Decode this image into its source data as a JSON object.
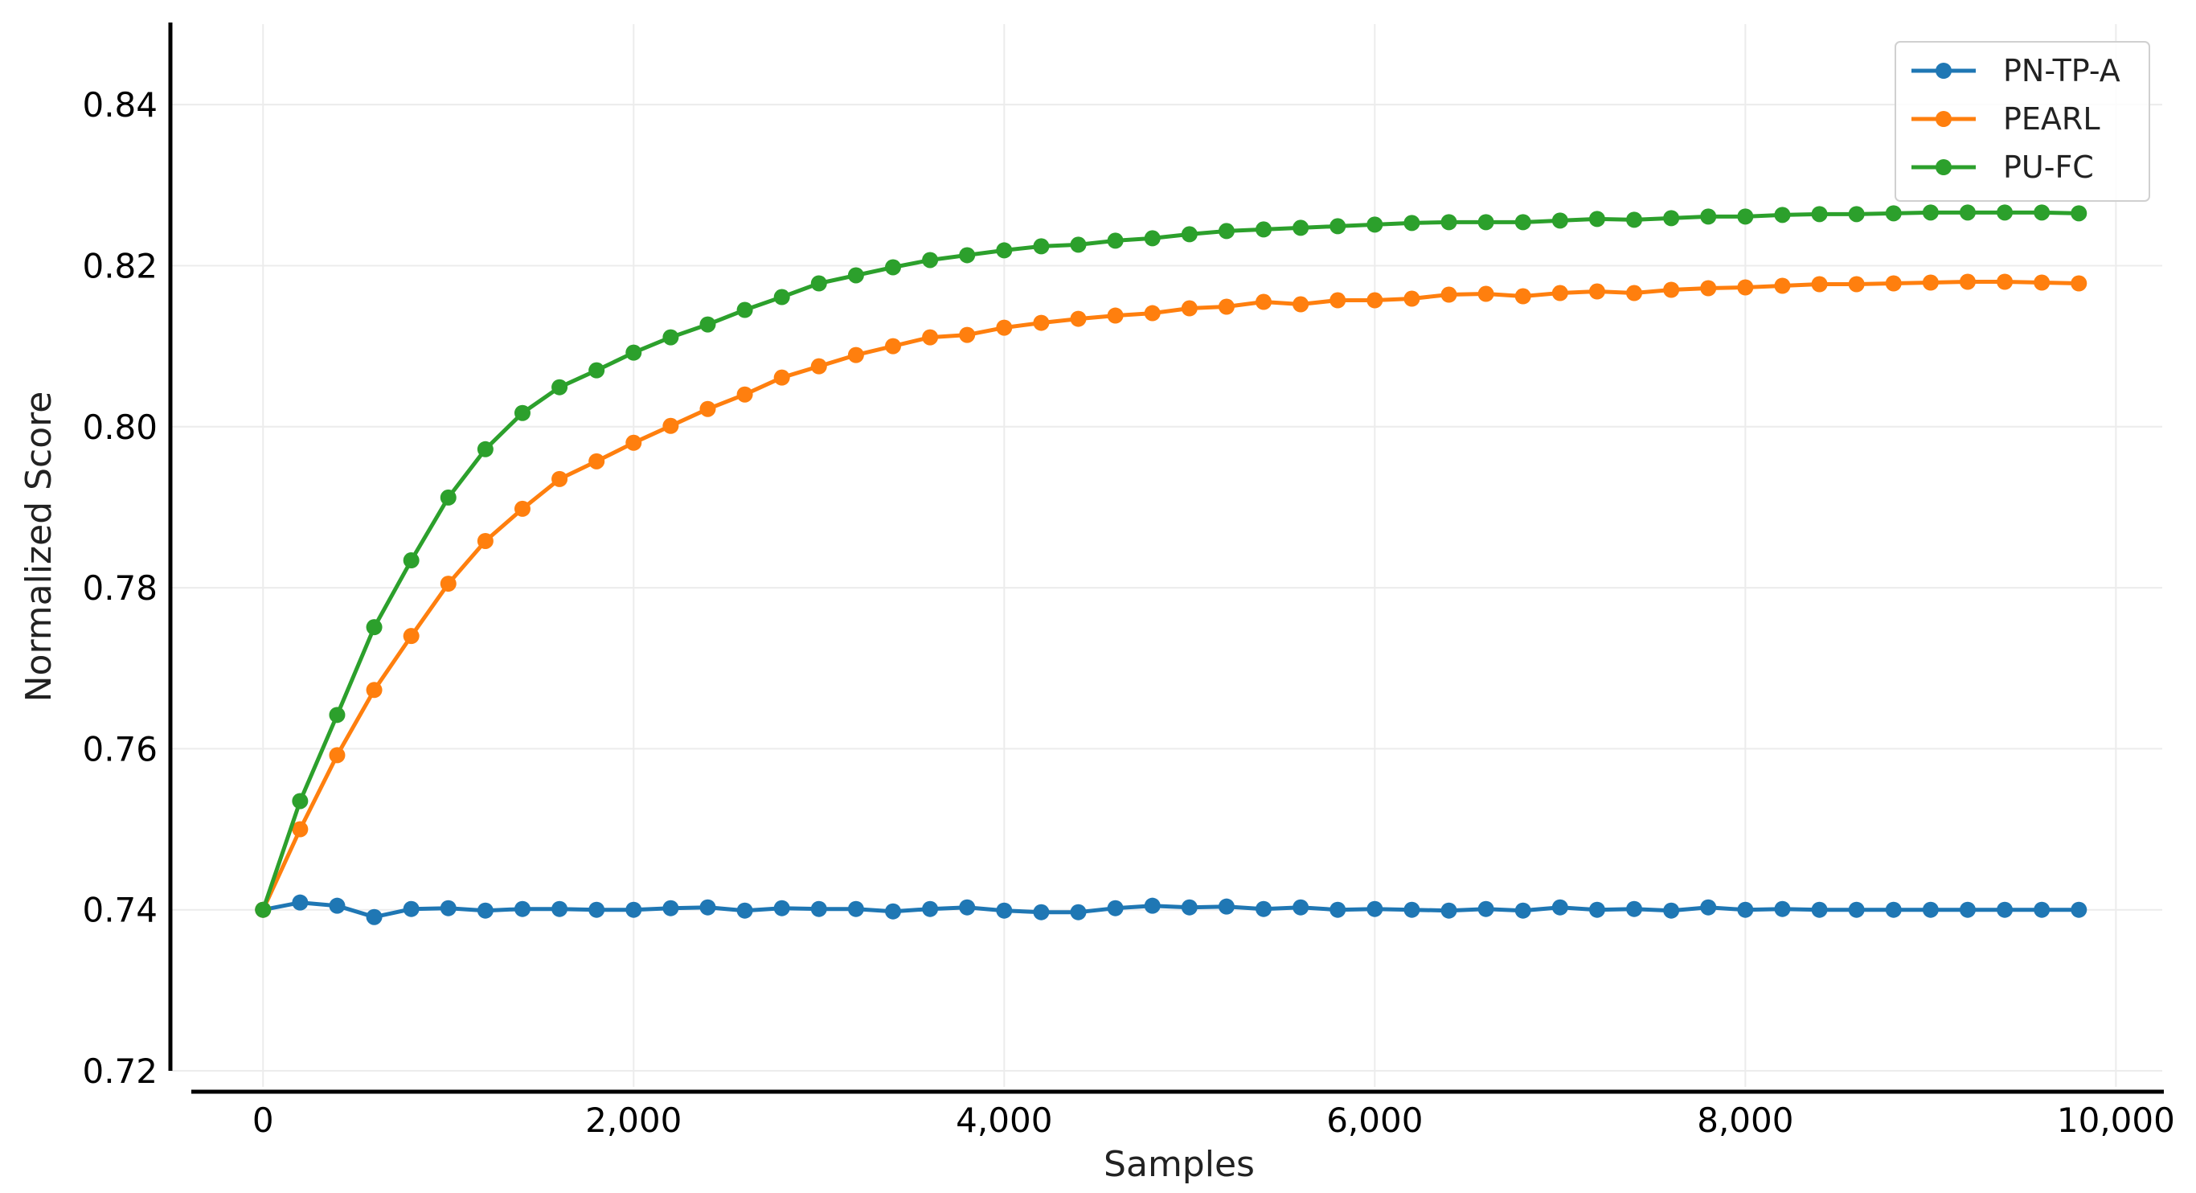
{
  "chart_data": {
    "type": "line",
    "title": "",
    "xlabel": "Samples",
    "ylabel": "Normalized Score",
    "xlim": [
      -500,
      10250
    ],
    "ylim": [
      0.72,
      0.85
    ],
    "x_ticks": [
      0,
      2000,
      4000,
      6000,
      8000,
      10000
    ],
    "x_tick_labels": [
      "0",
      "2,000",
      "4,000",
      "6,000",
      "8,000",
      "10,000"
    ],
    "y_ticks": [
      0.72,
      0.74,
      0.76,
      0.78,
      0.8,
      0.82,
      0.84
    ],
    "y_tick_labels": [
      "0.72",
      "0.74",
      "0.76",
      "0.78",
      "0.80",
      "0.82",
      "0.84"
    ],
    "grid": true,
    "legend_position": "top-right",
    "x": [
      0,
      200,
      400,
      600,
      800,
      1000,
      1200,
      1400,
      1600,
      1800,
      2000,
      2200,
      2400,
      2600,
      2800,
      3000,
      3200,
      3400,
      3600,
      3800,
      4000,
      4200,
      4400,
      4600,
      4800,
      5000,
      5200,
      5400,
      5600,
      5800,
      6000,
      6200,
      6400,
      6600,
      6800,
      7000,
      7200,
      7400,
      7600,
      7800,
      8000,
      8200,
      8400,
      8600,
      8800,
      9000,
      9200,
      9400,
      9600,
      9800
    ],
    "series": [
      {
        "name": "PN-TP-A",
        "color": "#1f77b4",
        "values": [
          0.74,
          0.7409,
          0.7405,
          0.7391,
          0.7401,
          0.7402,
          0.7399,
          0.7401,
          0.7401,
          0.74,
          0.74,
          0.7402,
          0.7403,
          0.7399,
          0.7402,
          0.7401,
          0.7401,
          0.7398,
          0.7401,
          0.7403,
          0.7399,
          0.7397,
          0.7397,
          0.7402,
          0.7405,
          0.7403,
          0.7404,
          0.7401,
          0.7403,
          0.74,
          0.7401,
          0.74,
          0.7399,
          0.7401,
          0.7399,
          0.7403,
          0.74,
          0.7401,
          0.7399,
          0.7403,
          0.74,
          0.7401,
          0.74,
          0.74,
          0.74,
          0.74,
          0.74,
          0.74,
          0.74,
          0.74
        ]
      },
      {
        "name": "PEARL",
        "color": "#ff7f0e",
        "values": [
          0.74,
          0.75,
          0.7592,
          0.7673,
          0.774,
          0.7805,
          0.7858,
          0.7898,
          0.7935,
          0.7957,
          0.798,
          0.8001,
          0.8022,
          0.804,
          0.8061,
          0.8075,
          0.8089,
          0.81,
          0.8111,
          0.8114,
          0.8123,
          0.8129,
          0.8134,
          0.8138,
          0.8141,
          0.8147,
          0.8149,
          0.8155,
          0.8152,
          0.8157,
          0.8157,
          0.8159,
          0.8164,
          0.8165,
          0.8162,
          0.8166,
          0.8168,
          0.8166,
          0.817,
          0.8172,
          0.8173,
          0.8175,
          0.8177,
          0.8177,
          0.8178,
          0.8179,
          0.818,
          0.818,
          0.8179,
          0.8178
        ]
      },
      {
        "name": "PU-FC",
        "color": "#2ca02c",
        "values": [
          0.74,
          0.7535,
          0.7642,
          0.7751,
          0.7834,
          0.7912,
          0.7972,
          0.8017,
          0.8049,
          0.807,
          0.8092,
          0.8111,
          0.8127,
          0.8145,
          0.8161,
          0.8178,
          0.8188,
          0.8198,
          0.8207,
          0.8213,
          0.8219,
          0.8224,
          0.8226,
          0.8231,
          0.8234,
          0.8239,
          0.8243,
          0.8245,
          0.8247,
          0.8249,
          0.8251,
          0.8253,
          0.8254,
          0.8254,
          0.8254,
          0.8256,
          0.8258,
          0.8257,
          0.8259,
          0.8261,
          0.8261,
          0.8263,
          0.8264,
          0.8264,
          0.8265,
          0.8266,
          0.8266,
          0.8266,
          0.8266,
          0.8265
        ]
      }
    ]
  }
}
